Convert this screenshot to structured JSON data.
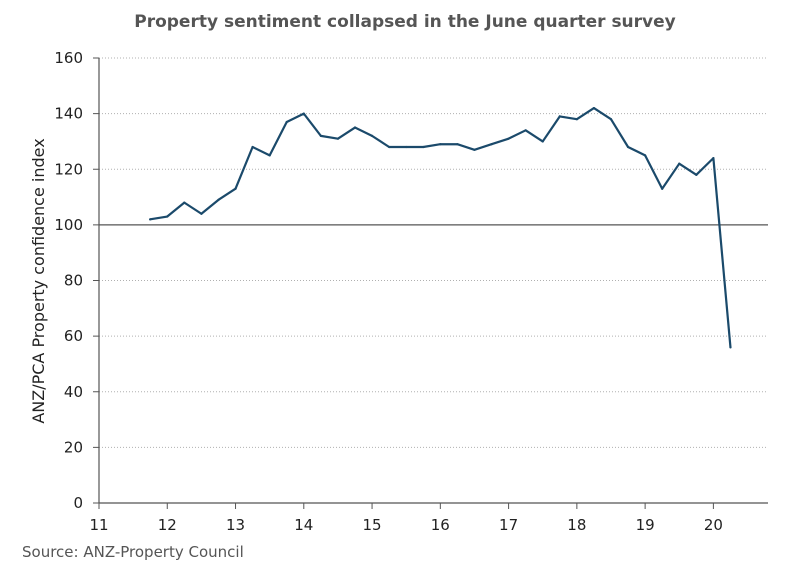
{
  "chart_data": {
    "type": "line",
    "title": "Property sentiment collapsed in the June quarter survey",
    "ylabel": "ANZ/PCA Property confidence index",
    "xlabel": "",
    "source": "Source: ANZ-Property Council",
    "ylim": [
      0,
      160
    ],
    "yticks": [
      0,
      20,
      40,
      60,
      80,
      100,
      120,
      140,
      160
    ],
    "xlim": [
      11,
      20.8
    ],
    "xticks": [
      11,
      12,
      13,
      14,
      15,
      16,
      17,
      18,
      19,
      20
    ],
    "xtick_labels": [
      "11",
      "12",
      "13",
      "14",
      "15",
      "16",
      "17",
      "18",
      "19",
      "20"
    ],
    "grid": "horizontal dotted",
    "reference_line": 100,
    "colors": {
      "line": "#1b4a6b",
      "grid": "#b0b0b0",
      "axis": "#555555"
    },
    "series": [
      {
        "x": [
          11.75,
          12.0,
          12.25,
          12.5,
          12.75,
          13.0,
          13.25,
          13.5,
          13.75,
          14.0,
          14.25,
          14.5,
          14.75,
          15.0,
          15.25,
          15.5,
          15.75,
          16.0,
          16.25,
          16.5,
          16.75,
          17.0,
          17.25,
          17.5,
          17.75,
          18.0,
          18.25,
          18.5,
          18.75,
          19.0,
          19.25,
          19.5,
          19.75,
          20.0,
          20.25
        ],
        "values": [
          102,
          103,
          108,
          104,
          109,
          113,
          128,
          125,
          137,
          140,
          132,
          131,
          135,
          132,
          128,
          128,
          128,
          129,
          129,
          127,
          129,
          131,
          134,
          130,
          139,
          138,
          142,
          138,
          128,
          125,
          113,
          122,
          118,
          124,
          56
        ]
      }
    ]
  }
}
